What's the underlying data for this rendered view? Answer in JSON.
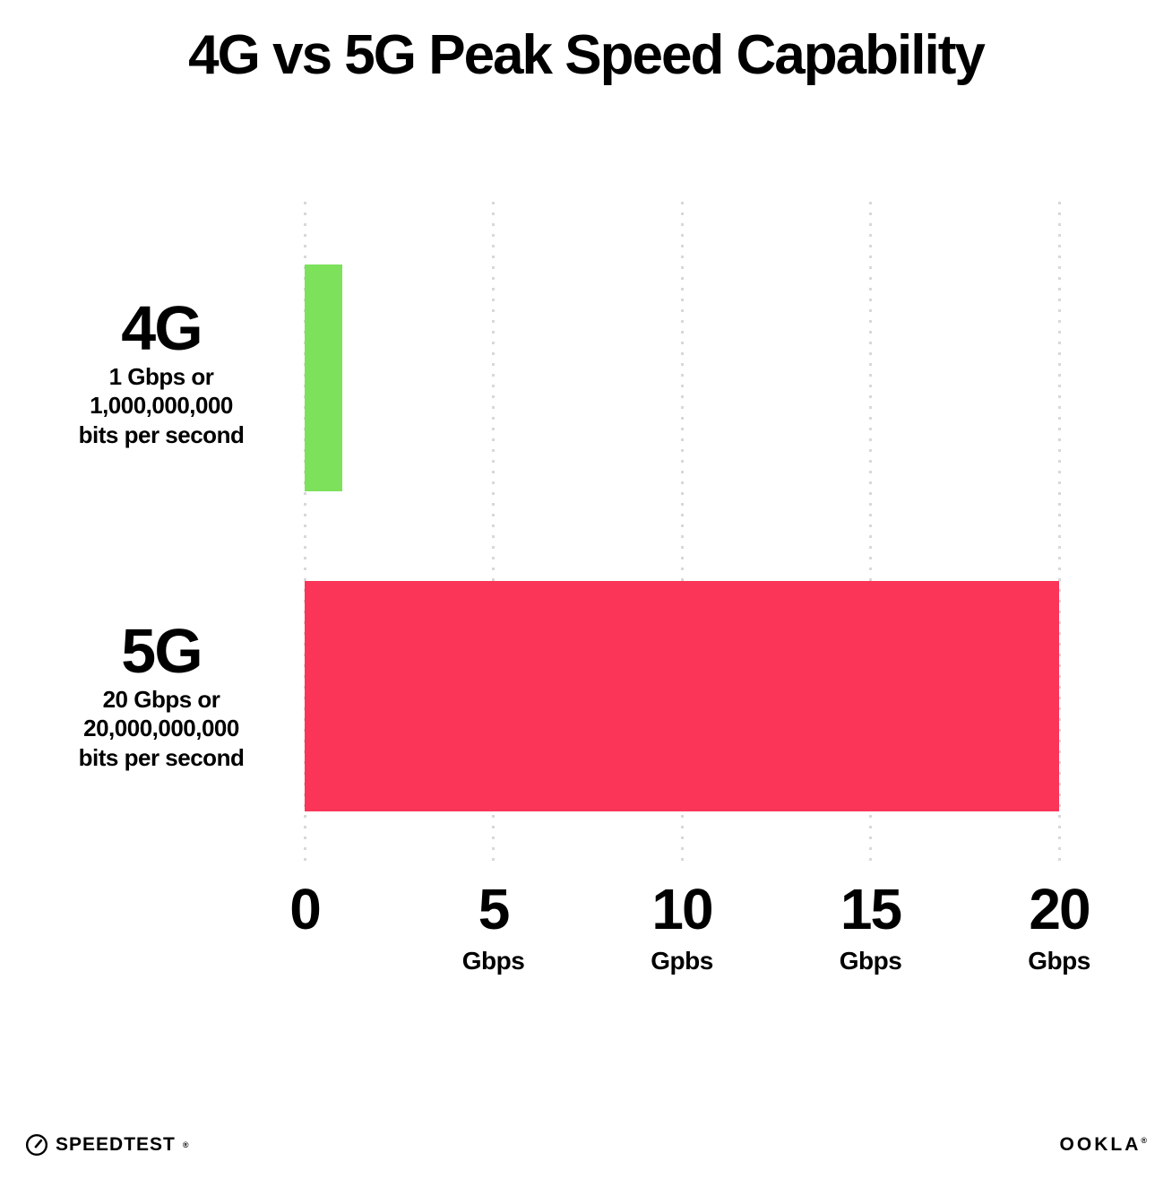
{
  "page": {
    "background": "#ffffff",
    "text_color": "#000000"
  },
  "chart_data": {
    "type": "bar",
    "orientation": "horizontal",
    "title": "4G vs 5G Peak Speed Capability",
    "categories": [
      "4G",
      "5G"
    ],
    "values": [
      1,
      20
    ],
    "bar_colors": [
      "#7DE15C",
      "#FA3558"
    ],
    "xlim": [
      0,
      20
    ],
    "xlabel": "",
    "ylabel": "",
    "grid": "vertical-dotted",
    "gridline_color": "#d8d8d8",
    "legend": "none",
    "x_ticks": [
      {
        "value": "0",
        "unit": ""
      },
      {
        "value": "5",
        "unit": "Gbps"
      },
      {
        "value": "10",
        "unit": "Gpbs"
      },
      {
        "value": "15",
        "unit": "Gbps"
      },
      {
        "value": "20",
        "unit": "Gbps"
      }
    ],
    "row_labels": [
      {
        "label": "4G",
        "lines": [
          "1 Gbps or",
          "1,000,000,000",
          "bits per second"
        ]
      },
      {
        "label": "5G",
        "lines": [
          "20 Gbps or",
          "20,000,000,000",
          "bits per second"
        ]
      }
    ]
  },
  "footer": {
    "speedtest": "SPEEDTEST",
    "speedtest_mark": "®",
    "ookla": "OOKLA",
    "ookla_mark": "®"
  }
}
